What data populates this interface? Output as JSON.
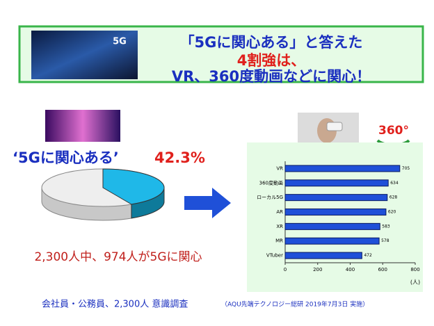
{
  "header": {
    "image_label": "5G",
    "lines": [
      "「5Gに関心ある」と答えた",
      "4割強は、",
      "VR、360度動画などに関心！"
    ]
  },
  "badge": "360°",
  "summary": "2,300人中、974人が5Gに関心",
  "footer": {
    "main": "会社員・公務員、2,300人 意識調査",
    "note": "（AQU先端テクノロジー総研 2019年7月3日 実施）"
  },
  "chart_data": [
    {
      "type": "pie",
      "categories": [
        "‘5Gに関心ある’"
      ],
      "values": [
        42.3
      ],
      "value_labels": [
        "42.3%"
      ],
      "color": "#1fb8e8"
    },
    {
      "type": "bar",
      "orientation": "horizontal",
      "categories": [
        "VR",
        "360度動画",
        "ローカル5G",
        "AR",
        "XR",
        "MR",
        "VTuber"
      ],
      "values": [
        705,
        634,
        628,
        620,
        583,
        578,
        472
      ],
      "color": "#1f50d8",
      "xlim": [
        0,
        800
      ],
      "xticks": [
        0,
        200,
        400,
        600,
        800
      ],
      "x_label": "(人)"
    }
  ]
}
